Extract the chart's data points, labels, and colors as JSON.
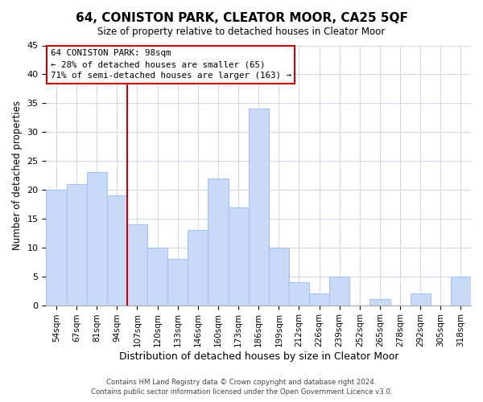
{
  "title": "64, CONISTON PARK, CLEATOR MOOR, CA25 5QF",
  "subtitle": "Size of property relative to detached houses in Cleator Moor",
  "xlabel": "Distribution of detached houses by size in Cleator Moor",
  "ylabel": "Number of detached properties",
  "bar_labels": [
    "54sqm",
    "67sqm",
    "81sqm",
    "94sqm",
    "107sqm",
    "120sqm",
    "133sqm",
    "146sqm",
    "160sqm",
    "173sqm",
    "186sqm",
    "199sqm",
    "212sqm",
    "226sqm",
    "239sqm",
    "252sqm",
    "265sqm",
    "278sqm",
    "292sqm",
    "305sqm",
    "318sqm"
  ],
  "bar_values": [
    20,
    21,
    23,
    19,
    14,
    10,
    8,
    13,
    22,
    17,
    34,
    10,
    4,
    2,
    5,
    0,
    1,
    0,
    2,
    0,
    5
  ],
  "bar_color": "#c9daf8",
  "bar_edge_color": "#a4c2f4",
  "vline_x": 3.5,
  "vline_color": "#cc0000",
  "annotation_line1": "64 CONISTON PARK: 98sqm",
  "annotation_line2": "← 28% of detached houses are smaller (65)",
  "annotation_line3": "71% of semi-detached houses are larger (163) →",
  "annotation_box_color": "#ffffff",
  "annotation_box_edge": "#cc0000",
  "ylim": [
    0,
    45
  ],
  "yticks": [
    0,
    5,
    10,
    15,
    20,
    25,
    30,
    35,
    40,
    45
  ],
  "footer1": "Contains HM Land Registry data © Crown copyright and database right 2024.",
  "footer2": "Contains public sector information licensed under the Open Government Licence v3.0.",
  "bg_color": "#ffffff",
  "plot_bg_color": "#ffffff",
  "grid_color": "#d0d8e8"
}
